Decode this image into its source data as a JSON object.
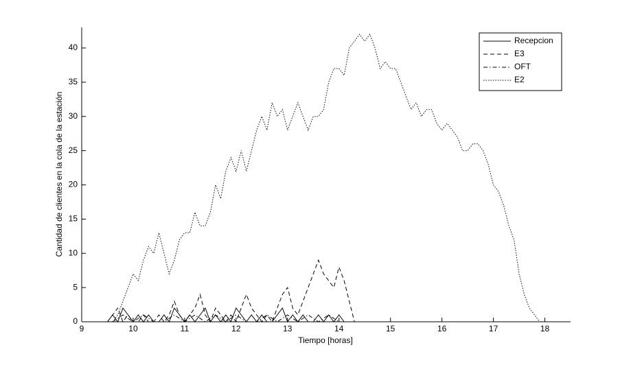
{
  "chart_data": {
    "type": "line",
    "xlabel": "Tiempo [horas]",
    "ylabel": "Cantidad de clientes en la cola de la estación",
    "xlim": [
      9,
      18.5
    ],
    "ylim": [
      0,
      43
    ],
    "xticks": [
      9,
      10,
      11,
      12,
      13,
      14,
      15,
      16,
      17,
      18
    ],
    "yticks": [
      0,
      5,
      10,
      15,
      20,
      25,
      30,
      35,
      40
    ],
    "legend": "northeast",
    "series": [
      {
        "name": "Recepcion",
        "color": "#000000",
        "linestyle": "-",
        "x": [
          9.5,
          9.6,
          9.7,
          9.8,
          9.9,
          10.0,
          10.1,
          10.2,
          10.3,
          10.4,
          10.5,
          10.6,
          10.7,
          10.8,
          10.9,
          11.0,
          11.1,
          11.2,
          11.3,
          11.4,
          11.5,
          11.6,
          11.7,
          11.8,
          11.9,
          12.0,
          12.1,
          12.2,
          12.3,
          12.4,
          12.5,
          12.6,
          12.7,
          12.8,
          12.9,
          13.0,
          13.1,
          13.2,
          13.3,
          13.4,
          13.5,
          13.6,
          13.7,
          13.8,
          13.9,
          14.0,
          14.1
        ],
        "values": [
          0,
          1,
          0,
          2,
          1,
          0,
          1,
          0,
          1,
          0,
          0,
          1,
          0,
          2,
          1,
          0,
          1,
          0,
          1,
          2,
          0,
          1,
          0,
          1,
          0,
          2,
          1,
          0,
          1,
          0,
          1,
          0,
          0,
          1,
          2,
          0,
          1,
          0,
          1,
          0,
          0,
          1,
          0,
          1,
          0,
          1,
          0
        ]
      },
      {
        "name": "E3",
        "color": "#000000",
        "linestyle": "--",
        "x": [
          9.5,
          9.6,
          9.7,
          9.8,
          9.9,
          10.0,
          10.1,
          10.2,
          10.3,
          10.4,
          10.5,
          10.6,
          10.7,
          10.8,
          10.9,
          11.0,
          11.1,
          11.2,
          11.3,
          11.4,
          11.5,
          11.6,
          11.7,
          11.8,
          11.9,
          12.0,
          12.1,
          12.2,
          12.3,
          12.4,
          12.5,
          12.6,
          12.7,
          12.8,
          12.9,
          13.0,
          13.1,
          13.2,
          13.3,
          13.4,
          13.5,
          13.6,
          13.7,
          13.8,
          13.9,
          14.0,
          14.1,
          14.2,
          14.3
        ],
        "values": [
          0,
          1,
          2,
          0,
          1,
          0,
          0,
          1,
          0,
          0,
          1,
          0,
          1,
          3,
          1,
          0,
          1,
          2,
          4,
          1,
          0,
          2,
          1,
          0,
          1,
          0,
          2,
          4,
          2,
          1,
          0,
          1,
          0,
          2,
          4,
          5,
          2,
          1,
          3,
          5,
          7,
          9,
          7,
          6,
          5,
          8,
          6,
          3,
          0
        ]
      },
      {
        "name": "OFT",
        "color": "#000000",
        "linestyle": "-.",
        "x": [
          9.6,
          9.8,
          10.0,
          10.2,
          10.4,
          10.6,
          10.8,
          11.0,
          11.2,
          11.4,
          11.6,
          11.8,
          12.0,
          12.2,
          12.4,
          12.6,
          12.8,
          13.0,
          13.2,
          13.4,
          13.6,
          13.8,
          14.0
        ],
        "values": [
          0,
          1,
          0,
          1,
          0,
          0,
          1,
          0,
          1,
          0,
          1,
          0,
          1,
          0,
          0,
          1,
          0,
          1,
          0,
          1,
          0,
          1,
          0
        ]
      },
      {
        "name": "E2",
        "color": "#000000",
        "linestyle": ":",
        "x": [
          9.6,
          9.7,
          9.8,
          9.9,
          10.0,
          10.1,
          10.2,
          10.3,
          10.4,
          10.5,
          10.6,
          10.7,
          10.8,
          10.9,
          11.0,
          11.1,
          11.2,
          11.3,
          11.4,
          11.5,
          11.6,
          11.7,
          11.8,
          11.9,
          12.0,
          12.1,
          12.2,
          12.3,
          12.4,
          12.5,
          12.6,
          12.7,
          12.8,
          12.9,
          13.0,
          13.1,
          13.2,
          13.3,
          13.4,
          13.5,
          13.6,
          13.7,
          13.8,
          13.9,
          14.0,
          14.1,
          14.2,
          14.3,
          14.4,
          14.5,
          14.6,
          14.7,
          14.8,
          14.9,
          15.0,
          15.1,
          15.2,
          15.3,
          15.4,
          15.5,
          15.6,
          15.7,
          15.8,
          15.9,
          16.0,
          16.1,
          16.2,
          16.3,
          16.4,
          16.5,
          16.6,
          16.7,
          16.8,
          16.9,
          17.0,
          17.1,
          17.2,
          17.3,
          17.4,
          17.5,
          17.6,
          17.7,
          17.8,
          17.9
        ],
        "values": [
          0,
          1,
          3,
          5,
          7,
          6,
          9,
          11,
          10,
          13,
          10,
          7,
          9,
          12,
          13,
          13,
          16,
          14,
          14,
          16,
          20,
          18,
          22,
          24,
          22,
          25,
          22,
          25,
          28,
          30,
          28,
          32,
          30,
          31,
          28,
          30,
          32,
          30,
          28,
          30,
          30,
          31,
          35,
          37,
          37,
          36,
          40,
          41,
          42,
          41,
          42,
          40,
          37,
          38,
          37,
          37,
          35,
          33,
          31,
          32,
          30,
          31,
          31,
          29,
          28,
          29,
          28,
          27,
          25,
          25,
          26,
          26,
          25,
          23,
          20,
          19,
          17,
          14,
          12,
          7,
          4,
          2,
          1,
          0
        ]
      }
    ]
  }
}
